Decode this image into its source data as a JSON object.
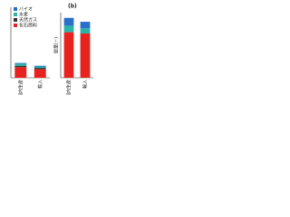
{
  "chart_data": [
    {
      "type": "stacked_bar",
      "categories": [
        "国内生産",
        "輸入"
      ],
      "ylim": [
        0,
        100
      ],
      "legend": "upper left",
      "series": [
        {
          "name": "化石燃料",
          "color": "#e8231f",
          "values": [
            15,
            12
          ]
        },
        {
          "name": "天然ガス",
          "color": "#333333",
          "values": [
            2,
            2
          ]
        },
        {
          "name": "水素",
          "color": "#2bb3a8",
          "values": [
            3,
            2
          ]
        },
        {
          "name": "バイオ",
          "color": "#2a6fc9",
          "values": [
            1,
            1
          ]
        }
      ]
    },
    {
      "type": "stacked_bar",
      "title": "(b)",
      "ylabel": "総量(−)",
      "categories": [
        "国内生産",
        "輸入"
      ],
      "ylim": [
        0,
        100
      ],
      "series": [
        {
          "name": "化石燃料",
          "color": "#e8231f",
          "values": [
            70,
            68
          ]
        },
        {
          "name": "水素",
          "color": "#2bb3a8",
          "values": [
            10,
            8
          ]
        },
        {
          "name": "バイオ",
          "color": "#2a6fc9",
          "values": [
            12,
            10
          ]
        }
      ]
    }
  ]
}
